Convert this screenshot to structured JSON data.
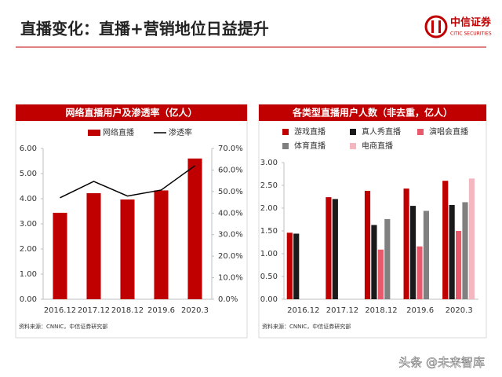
{
  "title": "直播变化：直播+营销地位日益提升",
  "logo": {
    "name": "中信证券",
    "subtitle": "CITIC SECURITIES"
  },
  "watermark": "头条 @未来智库",
  "chart_data": [
    {
      "type": "combo",
      "title": "网络直播用户及渗透率（亿人）",
      "source": "资料来源：CNNIC，中信证券研究部",
      "categories": [
        "2016.12",
        "2017.12",
        "2018.12",
        "2019.6",
        "2020.3"
      ],
      "series": [
        {
          "name": "网络直播",
          "type": "bar",
          "color": "#c00000",
          "values": [
            3.44,
            4.22,
            3.97,
            4.33,
            5.6
          ]
        },
        {
          "name": "渗透率",
          "type": "line",
          "axis": "y2",
          "color": "#000000",
          "values": [
            47.1,
            54.7,
            47.9,
            50.7,
            62.0
          ]
        }
      ],
      "ylim": [
        0,
        6
      ],
      "yticks": [
        {
          "value": 0,
          "label": "0.00"
        },
        {
          "value": 1,
          "label": "1.00"
        },
        {
          "value": 2,
          "label": "2.00"
        },
        {
          "value": 3,
          "label": "3.00"
        },
        {
          "value": 4,
          "label": "4.00"
        },
        {
          "value": 5,
          "label": "5.00"
        },
        {
          "value": 6,
          "label": "6.00"
        }
      ],
      "y2lim": [
        0,
        70
      ],
      "y2ticks": [
        {
          "value": 0,
          "label": "0.0%"
        },
        {
          "value": 10,
          "label": "10.0%"
        },
        {
          "value": 20,
          "label": "20.0%"
        },
        {
          "value": 30,
          "label": "30.0%"
        },
        {
          "value": 40,
          "label": "40.0%"
        },
        {
          "value": 50,
          "label": "50.0%"
        },
        {
          "value": 60,
          "label": "60.0%"
        },
        {
          "value": 70,
          "label": "70.0%"
        }
      ],
      "legend": "top"
    },
    {
      "type": "bar",
      "title": "各类型直播用户人数（非去重，亿人）",
      "source": "资料来源：CNNIC，中信证券研究部",
      "categories": [
        "2016.12",
        "2017.12",
        "2018.12",
        "2019.6",
        "2020.3"
      ],
      "series": [
        {
          "name": "游戏直播",
          "color": "#c00000",
          "values": [
            1.46,
            2.24,
            2.38,
            2.43,
            2.6
          ]
        },
        {
          "name": "真人秀直播",
          "color": "#1a1a1a",
          "values": [
            1.44,
            2.2,
            1.63,
            2.05,
            2.07
          ]
        },
        {
          "name": "演唱会直播",
          "color": "#e8596b",
          "values": [
            null,
            null,
            1.09,
            1.16,
            1.5
          ]
        },
        {
          "name": "体育直播",
          "color": "#808080",
          "values": [
            null,
            null,
            1.76,
            1.94,
            2.13
          ]
        },
        {
          "name": "电商直播",
          "color": "#f4b7c0",
          "values": [
            null,
            null,
            null,
            null,
            2.65
          ]
        }
      ],
      "ylim": [
        0,
        3
      ],
      "yticks": [
        {
          "value": 0,
          "label": "0.00"
        },
        {
          "value": 0.5,
          "label": "0.50"
        },
        {
          "value": 1,
          "label": "1.00"
        },
        {
          "value": 1.5,
          "label": "1.50"
        },
        {
          "value": 2,
          "label": "2.00"
        },
        {
          "value": 2.5,
          "label": "2.50"
        },
        {
          "value": 3,
          "label": "3.00"
        }
      ],
      "legend": "top"
    }
  ]
}
